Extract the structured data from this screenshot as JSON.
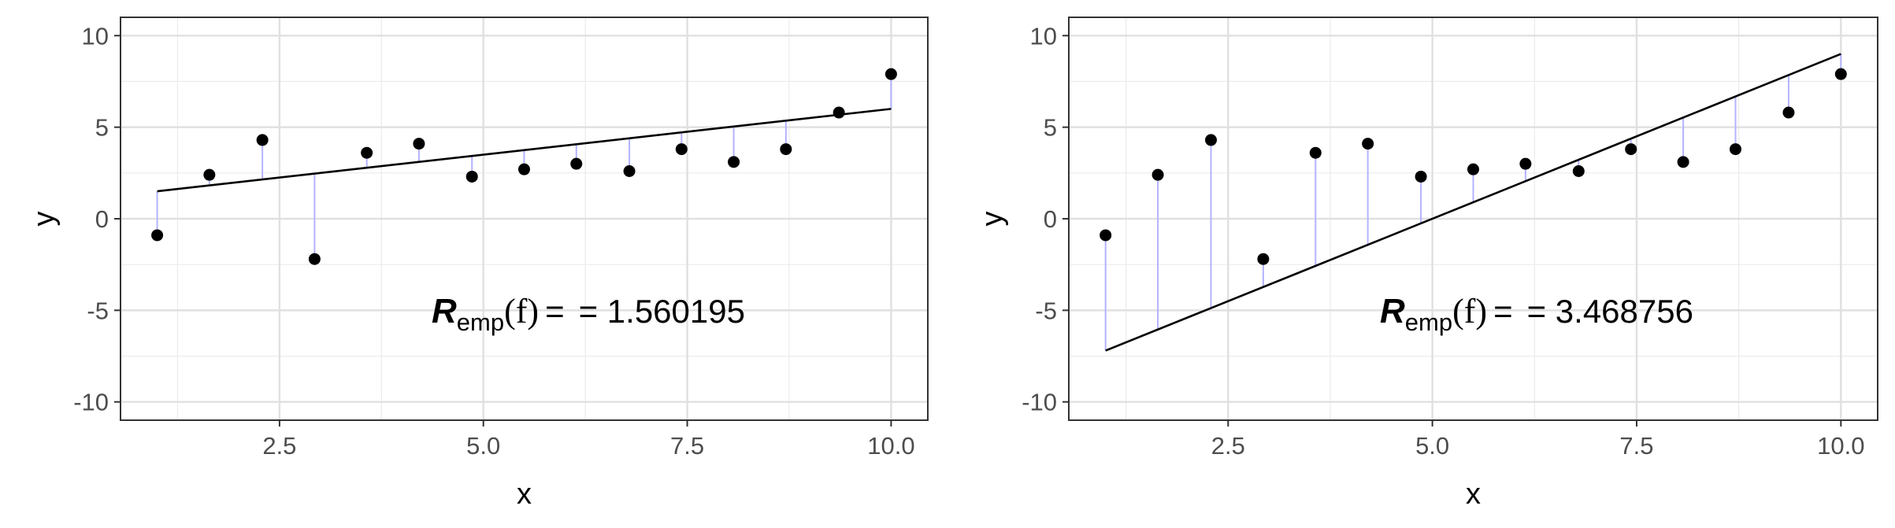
{
  "chart_data": [
    {
      "type": "scatter",
      "xlabel": "x",
      "ylabel": "y",
      "xlim": [
        0.55,
        10.45
      ],
      "ylim": [
        -11,
        11
      ],
      "xticks": [
        2.5,
        5.0,
        7.5,
        10.0
      ],
      "xtick_labels": [
        "2.5",
        "5.0",
        "7.5",
        "10.0"
      ],
      "yticks": [
        -10,
        -5,
        0,
        5,
        10
      ],
      "ytick_labels": [
        "-10",
        "-5",
        "0",
        "5",
        "10"
      ],
      "grid": true,
      "points": {
        "x": [
          1.0,
          1.64,
          2.29,
          2.93,
          3.57,
          4.21,
          4.86,
          5.5,
          6.14,
          6.79,
          7.43,
          8.07,
          8.71,
          9.36,
          10.0
        ],
        "y": [
          -0.9,
          2.4,
          4.3,
          -2.2,
          3.6,
          4.1,
          2.3,
          2.7,
          3.0,
          2.6,
          3.8,
          3.1,
          3.8,
          5.8,
          7.9
        ]
      },
      "fit_line": {
        "x": [
          1.0,
          10.0
        ],
        "y": [
          1.5,
          6.0
        ]
      },
      "residual_color": "#b3b3ff",
      "annotation": {
        "symbol": "R",
        "subscript": "emp",
        "argument": "(f)",
        "equals": "=",
        "value_text": "= 1.560195"
      }
    },
    {
      "type": "scatter",
      "xlabel": "x",
      "ylabel": "y",
      "xlim": [
        0.55,
        10.45
      ],
      "ylim": [
        -11,
        11
      ],
      "xticks": [
        2.5,
        5.0,
        7.5,
        10.0
      ],
      "xtick_labels": [
        "2.5",
        "5.0",
        "7.5",
        "10.0"
      ],
      "yticks": [
        -10,
        -5,
        0,
        5,
        10
      ],
      "ytick_labels": [
        "-10",
        "-5",
        "0",
        "5",
        "10"
      ],
      "grid": true,
      "points": {
        "x": [
          1.0,
          1.64,
          2.29,
          2.93,
          3.57,
          4.21,
          4.86,
          5.5,
          6.14,
          6.79,
          7.43,
          8.07,
          8.71,
          9.36,
          10.0
        ],
        "y": [
          -0.9,
          2.4,
          4.3,
          -2.2,
          3.6,
          4.1,
          2.3,
          2.7,
          3.0,
          2.6,
          3.8,
          3.1,
          3.8,
          5.8,
          7.9
        ]
      },
      "fit_line": {
        "x": [
          1.0,
          10.0
        ],
        "y": [
          -7.2,
          9.0
        ]
      },
      "residual_color": "#b3b3ff",
      "annotation": {
        "symbol": "R",
        "subscript": "emp",
        "argument": "(f)",
        "equals": "=",
        "value_text": "= 3.468756"
      }
    }
  ]
}
